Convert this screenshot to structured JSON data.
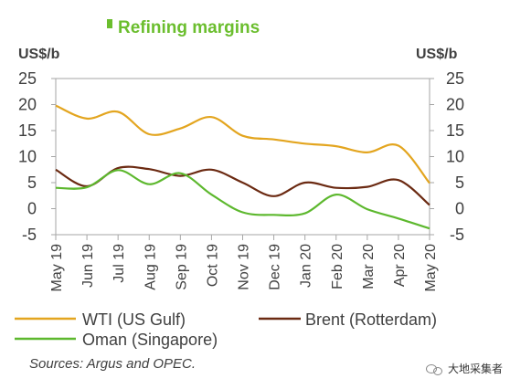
{
  "chart_data": {
    "type": "line",
    "title": "Refining margins",
    "ylabel_left": "US$/b",
    "ylabel_right": "US$/b",
    "ylim": [
      -5,
      25
    ],
    "yticks": [
      -5,
      0,
      5,
      10,
      15,
      20,
      25
    ],
    "categories": [
      "May 19",
      "Jun 19",
      "Jul 19",
      "Aug 19",
      "Sep 19",
      "Oct 19",
      "Nov 19",
      "Dec 19",
      "Jan 20",
      "Feb 20",
      "Mar 20",
      "Apr 20",
      "May 20"
    ],
    "series": [
      {
        "name": "WTI (US Gulf)",
        "color": "#E3A51F",
        "values": [
          19.8,
          17.3,
          18.6,
          14.3,
          15.4,
          17.6,
          14.0,
          13.3,
          12.5,
          12.0,
          10.8,
          12.1,
          4.9
        ]
      },
      {
        "name": "Brent (Rotterdam)",
        "color": "#6B2A12",
        "values": [
          7.5,
          4.3,
          7.8,
          7.6,
          6.3,
          7.5,
          5.0,
          2.4,
          5.0,
          4.0,
          4.2,
          5.5,
          0.7
        ]
      },
      {
        "name": "Oman (Singapore)",
        "color": "#5DB82E",
        "values": [
          4.0,
          4.1,
          7.4,
          4.7,
          6.8,
          2.7,
          -0.7,
          -1.2,
          -0.9,
          2.7,
          -0.1,
          -1.9,
          -3.8
        ]
      }
    ],
    "legend_position": "bottom",
    "grid": false
  },
  "source_note": "Sources: Argus and OPEC.",
  "watermark": "大地采集者",
  "colors": {
    "title": "#6BBE2E",
    "text": "#404040",
    "axis": "#A6A6A6"
  }
}
